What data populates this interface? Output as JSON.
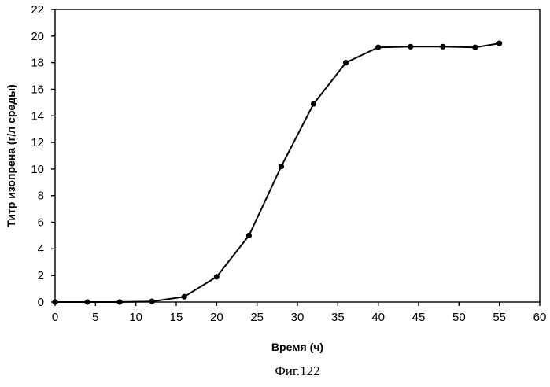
{
  "chart_data": {
    "type": "line",
    "xlabel": "Время (ч)",
    "ylabel": "Титр изопрена (г/л среды)",
    "xlim": [
      0,
      60
    ],
    "ylim": [
      0,
      22
    ],
    "xticks": [
      0,
      5,
      10,
      15,
      20,
      25,
      30,
      35,
      40,
      45,
      50,
      55,
      60
    ],
    "yticks": [
      0,
      2,
      4,
      6,
      8,
      10,
      12,
      14,
      16,
      18,
      20,
      22
    ],
    "grid": false,
    "series": [
      {
        "color": "#000000",
        "marker": "circle",
        "x": [
          0,
          4,
          8,
          12,
          16,
          20,
          24,
          28,
          32,
          36,
          40,
          44,
          48,
          52,
          55
        ],
        "y": [
          0.0,
          0.0,
          0.0,
          0.05,
          0.4,
          1.9,
          5.0,
          10.2,
          14.9,
          18.0,
          19.15,
          19.2,
          19.2,
          19.15,
          19.45
        ]
      }
    ]
  },
  "caption": "Фиг.122"
}
